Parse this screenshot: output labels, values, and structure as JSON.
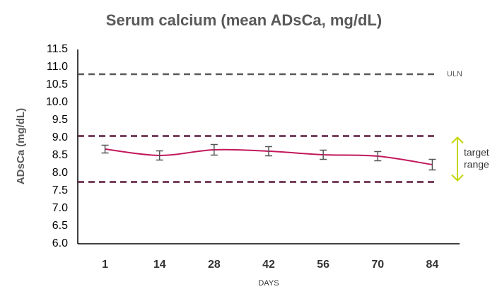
{
  "chart_data": {
    "type": "line",
    "title": "Serum calcium (mean ADsCa, mg/dL)",
    "y_label": "ADsCa (mg/dL)",
    "x_label": "DAYS",
    "categories": [
      "1",
      "14",
      "28",
      "42",
      "56",
      "70",
      "84"
    ],
    "series": [
      {
        "name": "ADsCa",
        "color": "#c2185b",
        "values": [
          8.68,
          8.5,
          8.66,
          8.62,
          8.52,
          8.48,
          8.24
        ],
        "errors": [
          0.11,
          0.13,
          0.15,
          0.13,
          0.13,
          0.13,
          0.15
        ]
      }
    ],
    "ylim": [
      6.0,
      11.5
    ],
    "yticks": [
      {
        "value": 6.0,
        "label": "6.0"
      },
      6.5,
      {
        "value": 7.0,
        "label": "7.0"
      },
      7.5,
      {
        "value": 8.0,
        "label": "8.0"
      },
      8.5,
      {
        "value": 9.0,
        "label": "9.0"
      },
      9.5,
      {
        "value": 10.0,
        "label": "10.0"
      },
      10.5,
      {
        "value": 11.0,
        "label": "11.0"
      },
      11.5
    ],
    "reference_lines": [
      {
        "value": 10.8,
        "label": "ULN",
        "color": "#595959"
      },
      {
        "value": 9.05,
        "color": "#5b1a3e"
      },
      {
        "value": 7.75,
        "color": "#5b1a3e"
      }
    ],
    "target_range": {
      "low": 7.75,
      "high": 9.05,
      "label": "target range",
      "color": "#c4d600"
    },
    "grid": false
  }
}
